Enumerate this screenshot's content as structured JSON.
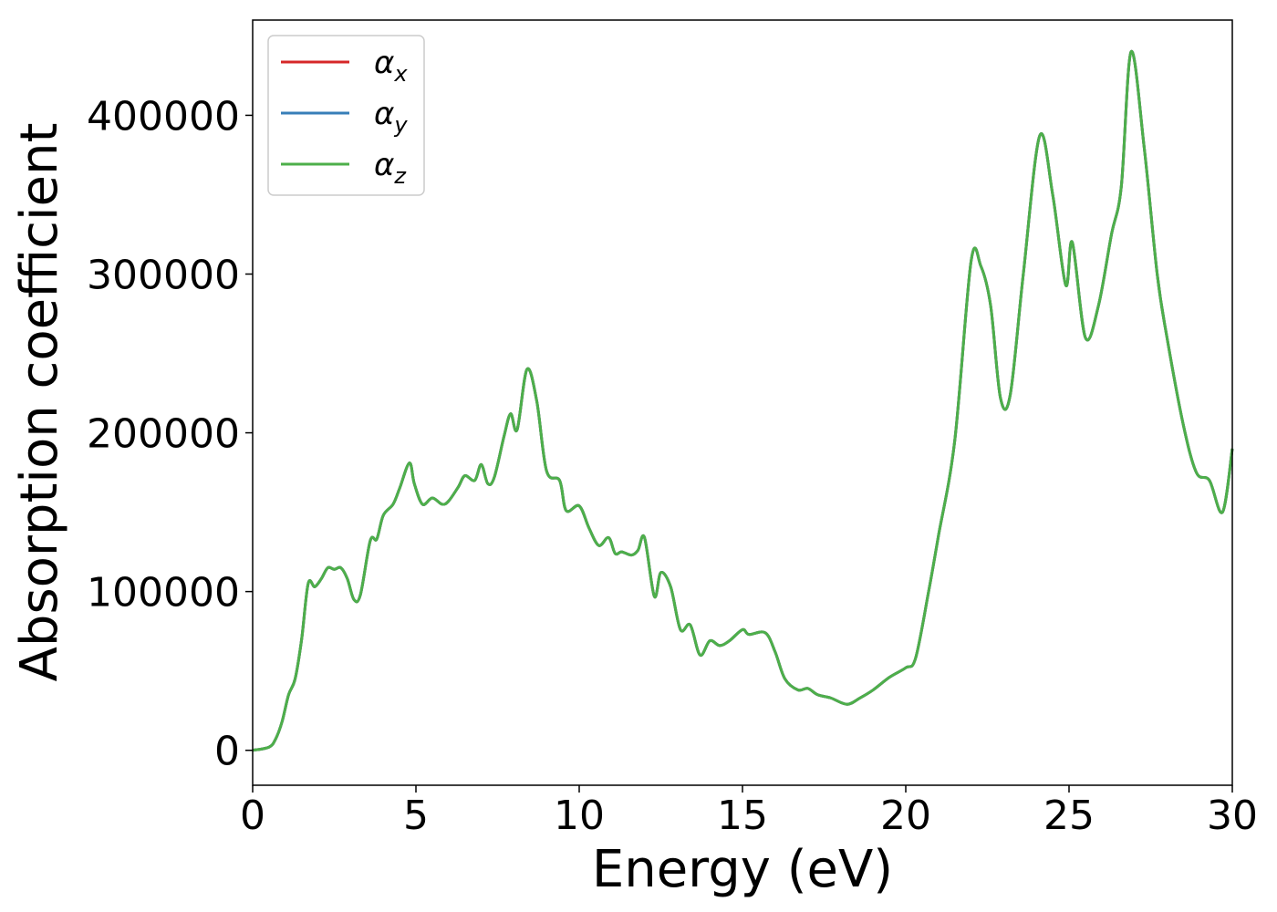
{
  "chart_data": {
    "type": "line",
    "title": "",
    "xlabel": "Energy (eV)",
    "ylabel": "Absorption coefficient",
    "xlim": [
      0,
      30
    ],
    "ylim": [
      -22000,
      460000
    ],
    "xticks": [
      0,
      5,
      10,
      15,
      20,
      25,
      30
    ],
    "yticks": [
      0,
      100000,
      200000,
      300000,
      400000
    ],
    "legend": {
      "position": "upper-left",
      "entries": [
        {
          "sym": "α",
          "sub": "x",
          "color": "#d62728"
        },
        {
          "sym": "α",
          "sub": "y",
          "color": "#377eb8"
        },
        {
          "sym": "α",
          "sub": "z",
          "color": "#4daf4a"
        }
      ]
    },
    "grid": false,
    "x": [
      0,
      0.5,
      0.7,
      0.9,
      1.1,
      1.3,
      1.5,
      1.7,
      1.9,
      2.1,
      2.3,
      2.5,
      2.7,
      2.9,
      3.1,
      3.3,
      3.6,
      3.8,
      4.0,
      4.3,
      4.5,
      4.8,
      4.95,
      5.2,
      5.5,
      5.8,
      6.0,
      6.3,
      6.5,
      6.8,
      7.0,
      7.2,
      7.4,
      7.7,
      7.9,
      8.1,
      8.4,
      8.7,
      9.0,
      9.4,
      9.6,
      10.0,
      10.3,
      10.6,
      10.9,
      11.1,
      11.3,
      11.6,
      11.8,
      12.0,
      12.3,
      12.5,
      12.8,
      13.1,
      13.4,
      13.7,
      14.0,
      14.3,
      14.6,
      15.0,
      15.2,
      15.7,
      16.0,
      16.3,
      16.7,
      17.0,
      17.3,
      17.7,
      18.2,
      18.6,
      19.0,
      19.5,
      20.0,
      20.3,
      20.7,
      21.0,
      21.5,
      22.0,
      22.3,
      22.6,
      22.9,
      23.2,
      23.6,
      24.1,
      24.5,
      24.9,
      25.1,
      25.5,
      25.9,
      26.3,
      26.6,
      26.9,
      27.3,
      27.7,
      28.0,
      28.5,
      28.9,
      29.3,
      29.7,
      30.0
    ],
    "series": [
      {
        "name": "αx",
        "color": "#d62728",
        "values": [
          0,
          2000,
          7000,
          18000,
          35000,
          45000,
          70000,
          105000,
          103000,
          108000,
          115000,
          114000,
          115000,
          108000,
          95000,
          98000,
          132000,
          133000,
          148000,
          155000,
          165000,
          181000,
          168000,
          155000,
          159000,
          155000,
          157000,
          166000,
          173000,
          170000,
          180000,
          168000,
          172000,
          198000,
          212000,
          202000,
          240000,
          220000,
          176000,
          170000,
          151000,
          154000,
          140000,
          129000,
          134000,
          124000,
          125000,
          123000,
          126000,
          134000,
          97000,
          112000,
          103000,
          76000,
          79000,
          60000,
          69000,
          66000,
          69000,
          76000,
          73000,
          74000,
          62000,
          45000,
          38000,
          39000,
          35000,
          33000,
          29000,
          33000,
          38000,
          46000,
          52000,
          58000,
          100000,
          135000,
          195000,
          308000,
          305000,
          280000,
          222000,
          224000,
          300000,
          387000,
          350000,
          293000,
          320000,
          260000,
          280000,
          325000,
          355000,
          440000,
          380000,
          300000,
          260000,
          205000,
          175000,
          170000,
          150000,
          190000
        ]
      },
      {
        "name": "αy",
        "color": "#377eb8",
        "values": [
          0,
          2000,
          7000,
          18000,
          35000,
          45000,
          70000,
          105000,
          103000,
          108000,
          115000,
          114000,
          115000,
          108000,
          95000,
          98000,
          132000,
          133000,
          148000,
          155000,
          165000,
          181000,
          168000,
          155000,
          159000,
          155000,
          157000,
          166000,
          173000,
          170000,
          180000,
          168000,
          172000,
          198000,
          212000,
          202000,
          240000,
          220000,
          176000,
          170000,
          151000,
          154000,
          140000,
          129000,
          134000,
          124000,
          125000,
          123000,
          126000,
          134000,
          97000,
          112000,
          103000,
          76000,
          79000,
          60000,
          69000,
          66000,
          69000,
          76000,
          73000,
          74000,
          62000,
          45000,
          38000,
          39000,
          35000,
          33000,
          29000,
          33000,
          38000,
          46000,
          52000,
          58000,
          100000,
          135000,
          195000,
          308000,
          305000,
          280000,
          222000,
          224000,
          300000,
          387000,
          350000,
          293000,
          320000,
          260000,
          280000,
          325000,
          355000,
          440000,
          380000,
          300000,
          260000,
          205000,
          175000,
          170000,
          150000,
          190000
        ]
      },
      {
        "name": "αz",
        "color": "#4daf4a",
        "values": [
          0,
          2000,
          7000,
          18000,
          35000,
          45000,
          70000,
          105000,
          103000,
          108000,
          115000,
          114000,
          115000,
          108000,
          95000,
          98000,
          132000,
          133000,
          148000,
          155000,
          165000,
          181000,
          168000,
          155000,
          159000,
          155000,
          157000,
          166000,
          173000,
          170000,
          180000,
          168000,
          172000,
          198000,
          212000,
          202000,
          240000,
          220000,
          176000,
          170000,
          151000,
          154000,
          140000,
          129000,
          134000,
          124000,
          125000,
          123000,
          126000,
          134000,
          97000,
          112000,
          103000,
          76000,
          79000,
          60000,
          69000,
          66000,
          69000,
          76000,
          73000,
          74000,
          62000,
          45000,
          38000,
          39000,
          35000,
          33000,
          29000,
          33000,
          38000,
          46000,
          52000,
          58000,
          100000,
          135000,
          195000,
          308000,
          305000,
          280000,
          222000,
          224000,
          300000,
          387000,
          350000,
          293000,
          320000,
          260000,
          280000,
          325000,
          355000,
          440000,
          380000,
          300000,
          260000,
          205000,
          175000,
          170000,
          150000,
          190000
        ]
      }
    ]
  }
}
